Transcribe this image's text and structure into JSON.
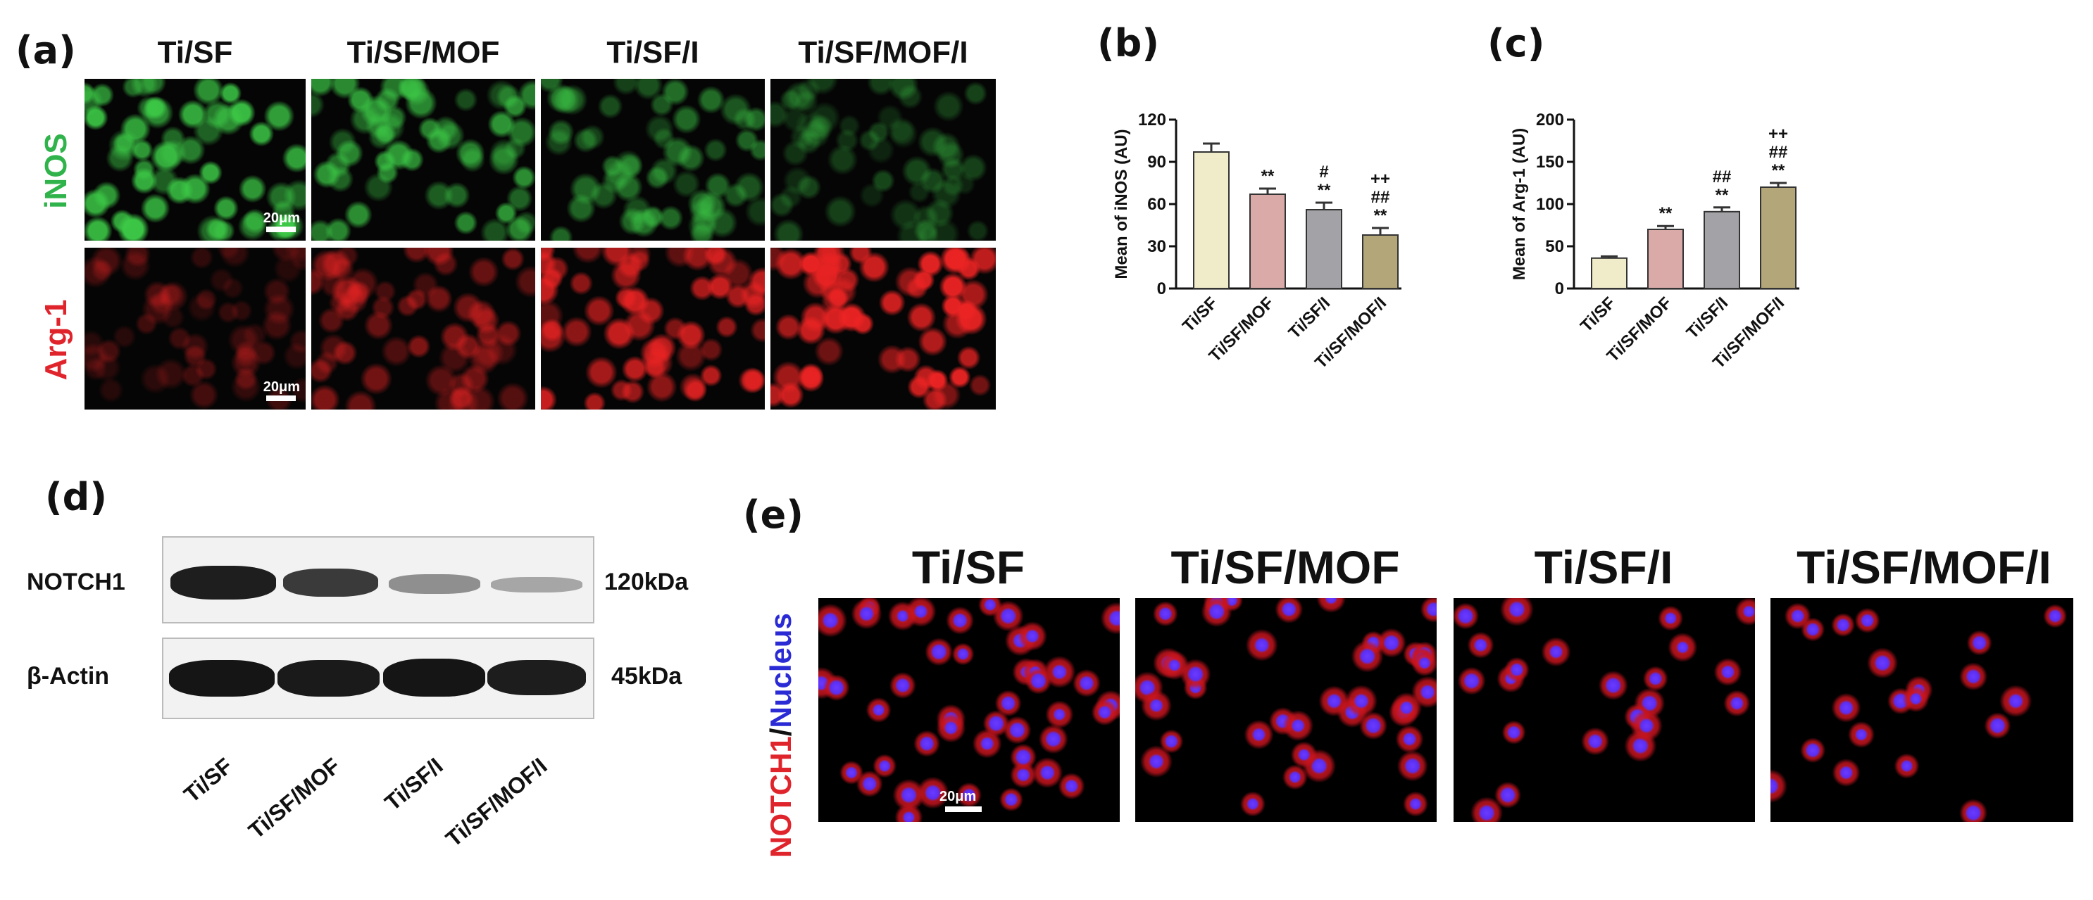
{
  "panel_labels": {
    "a": "(a)",
    "b": "(b)",
    "c": "(c)",
    "d": "(d)",
    "e": "(e)"
  },
  "groups": [
    "Ti/SF",
    "Ti/SF/MOF",
    "Ti/SF/I",
    "Ti/SF/MOF/I"
  ],
  "panel_a": {
    "rows": [
      "iNOS",
      "Arg-1"
    ],
    "scale_bar": "20μm",
    "colors": {
      "green": "#2fb34a",
      "red": "#e0242c"
    }
  },
  "panel_d": {
    "proteins": [
      "NOTCH1",
      "β-Actin"
    ],
    "sizes": [
      "120kDa",
      "45kDa"
    ],
    "lanes": [
      "Ti/SF",
      "Ti/SF/MOF",
      "Ti/SF/I",
      "Ti/SF/MOF/I"
    ]
  },
  "panel_e": {
    "label_red": "NOTCH1",
    "label_slash": "/",
    "label_blue": "Nucleus",
    "scale_bar": "20μm"
  },
  "chart_data": [
    {
      "panel": "b",
      "type": "bar",
      "categories": [
        "Ti/SF",
        "Ti/SF/MOF",
        "Ti/SF/I",
        "Ti/SF/MOF/I"
      ],
      "values": [
        97,
        67,
        56,
        38
      ],
      "errors": [
        6,
        4,
        5,
        5
      ],
      "annotations": [
        [],
        [
          "**"
        ],
        [
          "#",
          "**"
        ],
        [
          "++",
          "##",
          "**"
        ]
      ],
      "ylabel": "Mean of iNOS (AU)",
      "ylim": [
        0,
        120
      ],
      "yticks": [
        0,
        30,
        60,
        90,
        120
      ],
      "bar_colors": [
        "#f0ebc8",
        "#d9aaa8",
        "#a3a2a6",
        "#b3a678"
      ]
    },
    {
      "panel": "c",
      "type": "bar",
      "categories": [
        "Ti/SF",
        "Ti/SF/MOF",
        "Ti/SF/I",
        "Ti/SF/MOF/I"
      ],
      "values": [
        36,
        70,
        91,
        120
      ],
      "errors": [
        2,
        4,
        5,
        5
      ],
      "annotations": [
        [],
        [
          "**"
        ],
        [
          "##",
          "**"
        ],
        [
          "++",
          "##",
          "**"
        ]
      ],
      "ylabel": "Mean of Arg-1 (AU)",
      "ylim": [
        0,
        200
      ],
      "yticks": [
        0,
        50,
        100,
        150,
        200
      ],
      "bar_colors": [
        "#f0ebc8",
        "#d9aaa8",
        "#a3a2a6",
        "#b3a678"
      ]
    }
  ]
}
